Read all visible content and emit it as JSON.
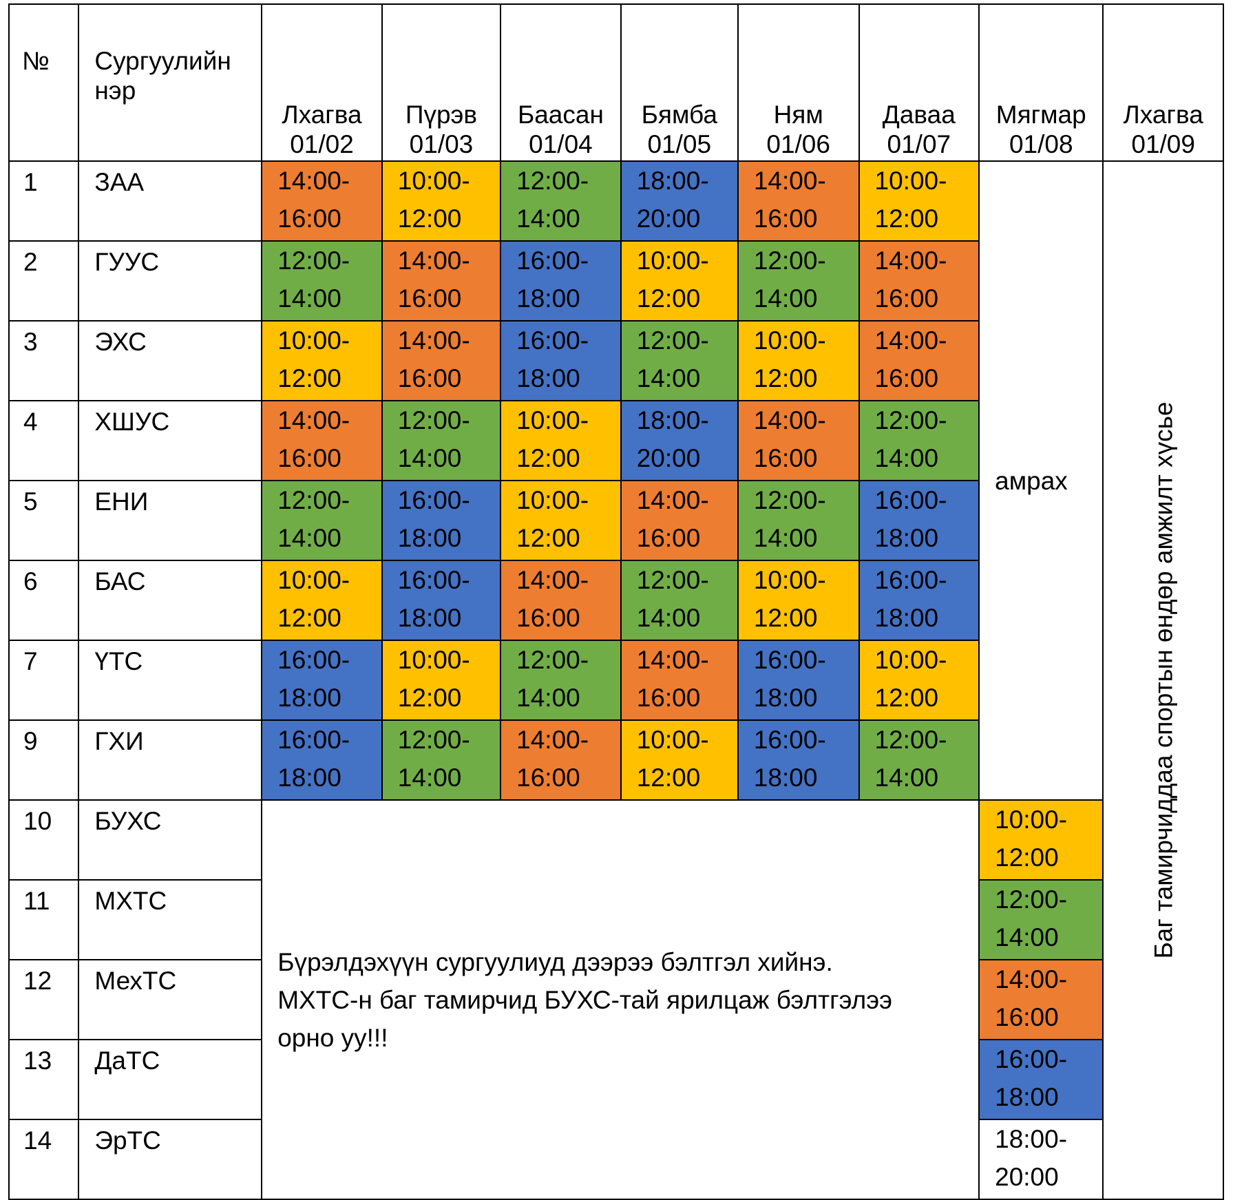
{
  "header": {
    "num_label": "№",
    "name_label_line1": "Сургуулийн",
    "name_label_line2": "нэр",
    "days": [
      {
        "name": "Лхагва",
        "date": "01/02"
      },
      {
        "name": "Пүрэв",
        "date": "01/03"
      },
      {
        "name": "Баасан",
        "date": "01/04"
      },
      {
        "name": "Бямба",
        "date": "01/05"
      },
      {
        "name": "Ням",
        "date": "01/06"
      },
      {
        "name": "Даваа",
        "date": "01/07"
      },
      {
        "name": "Мягмар",
        "date": "01/08"
      },
      {
        "name": "Лхагва",
        "date": "01/09"
      }
    ]
  },
  "colors": {
    "orange": "#ED7D31",
    "yellow": "#FFC000",
    "green": "#70AD47",
    "blue": "#4472C4",
    "none": "#FFFFFF"
  },
  "rows": [
    {
      "num": "1",
      "name": "ЗАА",
      "slots": [
        {
          "start": "14:00-",
          "end": "16:00",
          "color": "orange"
        },
        {
          "start": "10:00-",
          "end": "12:00",
          "color": "yellow"
        },
        {
          "start": "12:00-",
          "end": "14:00",
          "color": "green"
        },
        {
          "start": "18:00-",
          "end": "20:00",
          "color": "blue"
        },
        {
          "start": "14:00-",
          "end": "16:00",
          "color": "orange"
        },
        {
          "start": "10:00-",
          "end": "12:00",
          "color": "yellow"
        }
      ]
    },
    {
      "num": "2",
      "name": "ГУУС",
      "slots": [
        {
          "start": "12:00-",
          "end": "14:00",
          "color": "green"
        },
        {
          "start": "14:00-",
          "end": "16:00",
          "color": "orange"
        },
        {
          "start": "16:00-",
          "end": "18:00",
          "color": "blue"
        },
        {
          "start": "10:00-",
          "end": "12:00",
          "color": "yellow"
        },
        {
          "start": "12:00-",
          "end": "14:00",
          "color": "green"
        },
        {
          "start": "14:00-",
          "end": "16:00",
          "color": "orange"
        }
      ]
    },
    {
      "num": "3",
      "name": "ЭХС",
      "slots": [
        {
          "start": "10:00-",
          "end": "12:00",
          "color": "yellow"
        },
        {
          "start": "14:00-",
          "end": "16:00",
          "color": "orange"
        },
        {
          "start": "16:00-",
          "end": "18:00",
          "color": "blue"
        },
        {
          "start": "12:00-",
          "end": "14:00",
          "color": "green"
        },
        {
          "start": "10:00-",
          "end": "12:00",
          "color": "yellow"
        },
        {
          "start": "14:00-",
          "end": "16:00",
          "color": "orange"
        }
      ]
    },
    {
      "num": "4",
      "name": "ХШУС",
      "slots": [
        {
          "start": "14:00-",
          "end": "16:00",
          "color": "orange"
        },
        {
          "start": "12:00-",
          "end": "14:00",
          "color": "green"
        },
        {
          "start": "10:00-",
          "end": "12:00",
          "color": "yellow"
        },
        {
          "start": "18:00-",
          "end": "20:00",
          "color": "blue"
        },
        {
          "start": "14:00-",
          "end": "16:00",
          "color": "orange"
        },
        {
          "start": "12:00-",
          "end": "14:00",
          "color": "green"
        }
      ]
    },
    {
      "num": "5",
      "name": "ЕНИ",
      "slots": [
        {
          "start": "12:00-",
          "end": "14:00",
          "color": "green"
        },
        {
          "start": "16:00-",
          "end": "18:00",
          "color": "blue"
        },
        {
          "start": "10:00-",
          "end": "12:00",
          "color": "yellow"
        },
        {
          "start": "14:00-",
          "end": "16:00",
          "color": "orange"
        },
        {
          "start": "12:00-",
          "end": "14:00",
          "color": "green"
        },
        {
          "start": "16:00-",
          "end": "18:00",
          "color": "blue"
        }
      ]
    },
    {
      "num": "6",
      "name": "БАС",
      "slots": [
        {
          "start": "10:00-",
          "end": "12:00",
          "color": "yellow"
        },
        {
          "start": "16:00-",
          "end": "18:00",
          "color": "blue"
        },
        {
          "start": "14:00-",
          "end": "16:00",
          "color": "orange"
        },
        {
          "start": "12:00-",
          "end": "14:00",
          "color": "green"
        },
        {
          "start": "10:00-",
          "end": "12:00",
          "color": "yellow"
        },
        {
          "start": "16:00-",
          "end": "18:00",
          "color": "blue"
        }
      ]
    },
    {
      "num": "7",
      "name": "ҮТС",
      "slots": [
        {
          "start": "16:00-",
          "end": "18:00",
          "color": "blue"
        },
        {
          "start": "10:00-",
          "end": "12:00",
          "color": "yellow"
        },
        {
          "start": "12:00-",
          "end": "14:00",
          "color": "green"
        },
        {
          "start": "14:00-",
          "end": "16:00",
          "color": "orange"
        },
        {
          "start": "16:00-",
          "end": "18:00",
          "color": "blue"
        },
        {
          "start": "10:00-",
          "end": "12:00",
          "color": "yellow"
        }
      ]
    },
    {
      "num": "9",
      "name": "ГХИ",
      "slots": [
        {
          "start": "16:00-",
          "end": "18:00",
          "color": "blue"
        },
        {
          "start": "12:00-",
          "end": "14:00",
          "color": "green"
        },
        {
          "start": "14:00-",
          "end": "16:00",
          "color": "orange"
        },
        {
          "start": "10:00-",
          "end": "12:00",
          "color": "yellow"
        },
        {
          "start": "16:00-",
          "end": "18:00",
          "color": "blue"
        },
        {
          "start": "12:00-",
          "end": "14:00",
          "color": "green"
        }
      ]
    },
    {
      "num": "10",
      "name": "БУХС",
      "tuesday": {
        "start": "10:00-",
        "end": "12:00",
        "color": "yellow"
      }
    },
    {
      "num": "11",
      "name": "МХТС",
      "tuesday": {
        "start": "12:00-",
        "end": "14:00",
        "color": "green"
      }
    },
    {
      "num": "12",
      "name": "МехТС",
      "tuesday": {
        "start": "14:00-",
        "end": "16:00",
        "color": "orange"
      }
    },
    {
      "num": "13",
      "name": "ДаТС",
      "tuesday": {
        "start": "16:00-",
        "end": "18:00",
        "color": "blue"
      }
    },
    {
      "num": "14",
      "name": "ЭрТС",
      "tuesday": {
        "start": "18:00-",
        "end": "20:00",
        "color": "none"
      }
    }
  ],
  "rest_label": "амрах",
  "notice": {
    "line1": "Бүрэлдэхүүн сургуулиуд дээрээ бэлтгэл хийнэ.",
    "line2": "МХТС-н баг тамирчид  БУХС-тай ярилцаж бэлтгэлээ",
    "line3": "орно уу!!!"
  },
  "wishes": "Баг тамирчиддаа спортын өндөр амжилт хүсье"
}
